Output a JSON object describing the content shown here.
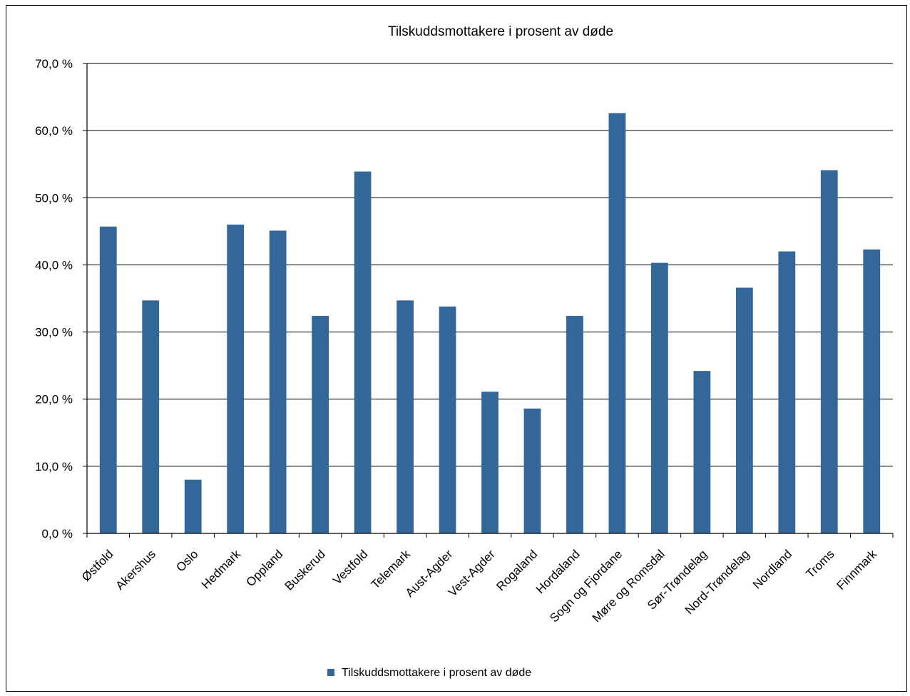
{
  "chart_data": {
    "type": "bar",
    "title": "Tilskuddsmottakere i prosent av døde",
    "xlabel": "",
    "ylabel": "",
    "ylim": [
      0,
      70
    ],
    "yticks": [
      "0,0 %",
      "10,0 %",
      "20,0 %",
      "30,0 %",
      "40,0 %",
      "50,0 %",
      "60,0 %",
      "70,0 %"
    ],
    "grid": true,
    "legend_position": "bottom",
    "categories": [
      "Østfold",
      "Akershus",
      "Oslo",
      "Hedmark",
      "Oppland",
      "Buskerud",
      "Vestfold",
      "Telemark",
      "Aust-Agder",
      "Vest-Agder",
      "Rogaland",
      "Hordaland",
      "Sogn og Fjordane",
      "Møre og Romsdal",
      "Sør-Trøndelag",
      "Nord-Trøndelag",
      "Nordland",
      "Troms",
      "Finnmark"
    ],
    "series": [
      {
        "name": "Tilskuddsmottakere i prosent av døde",
        "color": "#336699",
        "values": [
          45.7,
          34.7,
          8.0,
          46.0,
          45.1,
          32.4,
          53.9,
          34.7,
          33.8,
          21.1,
          18.6,
          32.4,
          62.6,
          40.3,
          24.2,
          36.6,
          42.0,
          54.1,
          42.3
        ]
      }
    ]
  }
}
